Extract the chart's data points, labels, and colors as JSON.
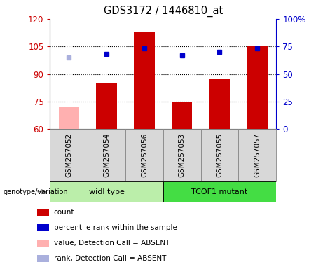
{
  "title": "GDS3172 / 1446810_at",
  "samples": [
    "GSM257052",
    "GSM257054",
    "GSM257056",
    "GSM257053",
    "GSM257055",
    "GSM257057"
  ],
  "count_values": [
    72,
    85,
    113,
    75,
    87,
    105
  ],
  "count_absent": [
    true,
    false,
    false,
    false,
    false,
    false
  ],
  "rank_values_pct": [
    65,
    68,
    73,
    67,
    70,
    73
  ],
  "rank_absent": [
    true,
    false,
    false,
    false,
    false,
    false
  ],
  "ylim_left": [
    60,
    120
  ],
  "ylim_right": [
    0,
    100
  ],
  "yticks_left": [
    60,
    75,
    90,
    105,
    120
  ],
  "yticks_right": [
    0,
    25,
    50,
    75,
    100
  ],
  "ytick_right_labels": [
    "0",
    "25",
    "50",
    "75",
    "100%"
  ],
  "hlines": [
    75,
    90,
    105
  ],
  "bar_color": "#cc0000",
  "bar_absent_color": "#ffb0b0",
  "rank_color": "#0000cc",
  "rank_absent_color": "#aab0dd",
  "left_axis_color": "#cc0000",
  "right_axis_color": "#0000cc",
  "bar_width": 0.55,
  "group_positions": [
    {
      "label": "widl type",
      "start": 0,
      "end": 3,
      "color": "#bbeeaa"
    },
    {
      "label": "TCOF1 mutant",
      "start": 3,
      "end": 6,
      "color": "#44dd44"
    }
  ],
  "group_row_label": "genotype/variation",
  "legend_items": [
    {
      "color": "#cc0000",
      "label": "count"
    },
    {
      "color": "#0000cc",
      "label": "percentile rank within the sample"
    },
    {
      "color": "#ffb0b0",
      "label": "value, Detection Call = ABSENT"
    },
    {
      "color": "#aab0dd",
      "label": "rank, Detection Call = ABSENT"
    }
  ]
}
